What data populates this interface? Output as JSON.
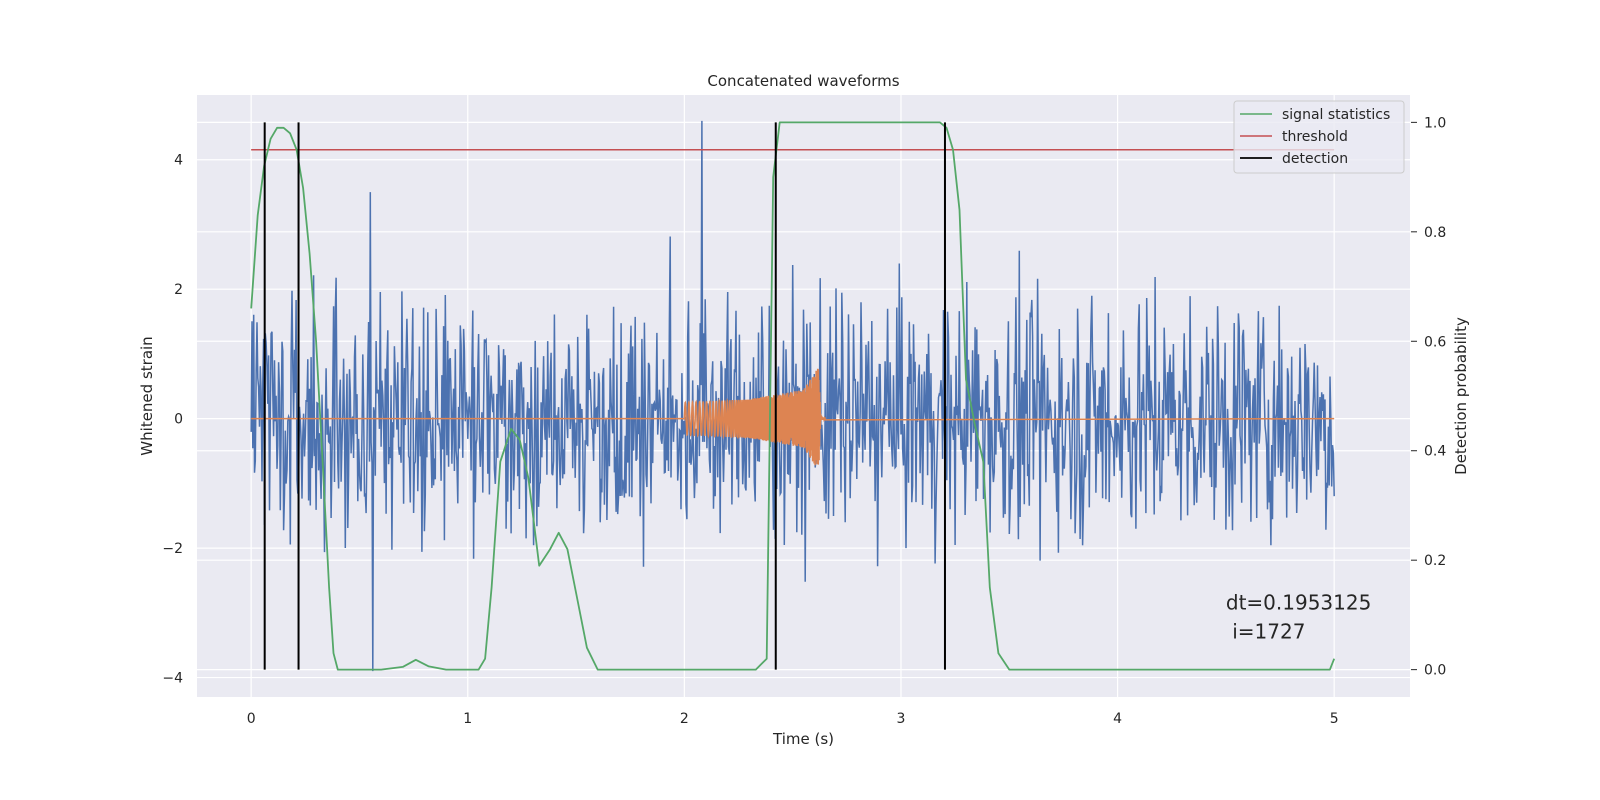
{
  "chart_data": {
    "type": "line",
    "title": "Concatenated waveforms",
    "xlabel": "Time (s)",
    "ylabel": "Whitened strain",
    "ylabel_right": "Detection probability",
    "xlim": [
      -0.25,
      5.35
    ],
    "ylim": [
      -4.3,
      5.0
    ],
    "ylim_right": [
      -0.05,
      1.05
    ],
    "x_ticks": [
      0,
      1,
      2,
      3,
      4,
      5
    ],
    "x_tick_labels": [
      "0",
      "1",
      "2",
      "3",
      "4",
      "5"
    ],
    "y_ticks": [
      -4,
      -2,
      0,
      2,
      4
    ],
    "y_tick_labels": [
      "−4",
      "−2",
      "0",
      "2",
      "4"
    ],
    "y_right_ticks": [
      0.0,
      0.2,
      0.4,
      0.6,
      0.8,
      1.0
    ],
    "y_right_tick_labels": [
      "0.0",
      "0.2",
      "0.4",
      "0.6",
      "0.8",
      "1.0"
    ],
    "grid": true,
    "legend_position": "upper right",
    "series": [
      {
        "name": "signal statistics",
        "color": "#55a868",
        "axis": "right",
        "x": [
          0.0,
          0.03,
          0.06,
          0.09,
          0.12,
          0.15,
          0.18,
          0.21,
          0.24,
          0.27,
          0.3,
          0.33,
          0.36,
          0.38,
          0.4,
          0.45,
          0.6,
          0.7,
          0.76,
          0.82,
          0.9,
          1.05,
          1.08,
          1.11,
          1.15,
          1.2,
          1.24,
          1.28,
          1.33,
          1.38,
          1.42,
          1.46,
          1.5,
          1.55,
          1.6,
          1.8,
          2.1,
          2.33,
          2.38,
          2.41,
          2.44,
          2.6,
          3.0,
          3.18,
          3.21,
          3.24,
          3.27,
          3.3,
          3.34,
          3.38,
          3.41,
          3.45,
          3.5,
          4.0,
          4.98,
          5.0
        ],
        "y": [
          0.66,
          0.83,
          0.92,
          0.97,
          0.99,
          0.99,
          0.98,
          0.95,
          0.88,
          0.76,
          0.6,
          0.38,
          0.15,
          0.03,
          0.0,
          0.0,
          0.0,
          0.005,
          0.018,
          0.006,
          0.0,
          0.0,
          0.02,
          0.15,
          0.38,
          0.44,
          0.42,
          0.35,
          0.19,
          0.22,
          0.25,
          0.22,
          0.14,
          0.04,
          0.0,
          0.0,
          0.0,
          0.0,
          0.02,
          0.9,
          1.0,
          1.0,
          1.0,
          1.0,
          0.99,
          0.95,
          0.84,
          0.53,
          0.45,
          0.38,
          0.15,
          0.03,
          0.0,
          0.0,
          0.0,
          0.02
        ]
      },
      {
        "name": "threshold",
        "color": "#c44e52",
        "axis": "right",
        "x": [
          0.0,
          5.0
        ],
        "y": [
          0.95,
          0.95
        ]
      },
      {
        "name": "detection",
        "color": "#000000",
        "axis": "right",
        "x_lines": [
          0.0625,
          0.2188,
          2.4219,
          3.2031
        ],
        "y_range": [
          0.0,
          1.0
        ]
      },
      {
        "name": "",
        "color": "#4c72b0",
        "axis": "left",
        "description_values": "whitened noise, approx. gaussian, sample spacing ~0.004 s",
        "x_range": [
          0.0,
          5.0
        ],
        "std": 0.9,
        "extremes": [
          [
            2.08,
            4.6
          ],
          [
            0.56,
            -3.9
          ],
          [
            0.55,
            3.5
          ]
        ]
      },
      {
        "name": "",
        "color": "#dd8452",
        "axis": "left",
        "x": [
          0.0,
          2.0,
          2.0,
          2.3,
          2.55,
          2.62,
          2.63,
          5.0
        ],
        "envelope": [
          0.0,
          0.0,
          0.25,
          0.3,
          0.45,
          0.8,
          0.02,
          0.0
        ]
      }
    ],
    "annotations": [
      {
        "text": "dt=0.1953125",
        "x": 4.5,
        "y": -2.95
      },
      {
        "text": " i=1727",
        "x": 4.5,
        "y": -3.4
      }
    ]
  }
}
